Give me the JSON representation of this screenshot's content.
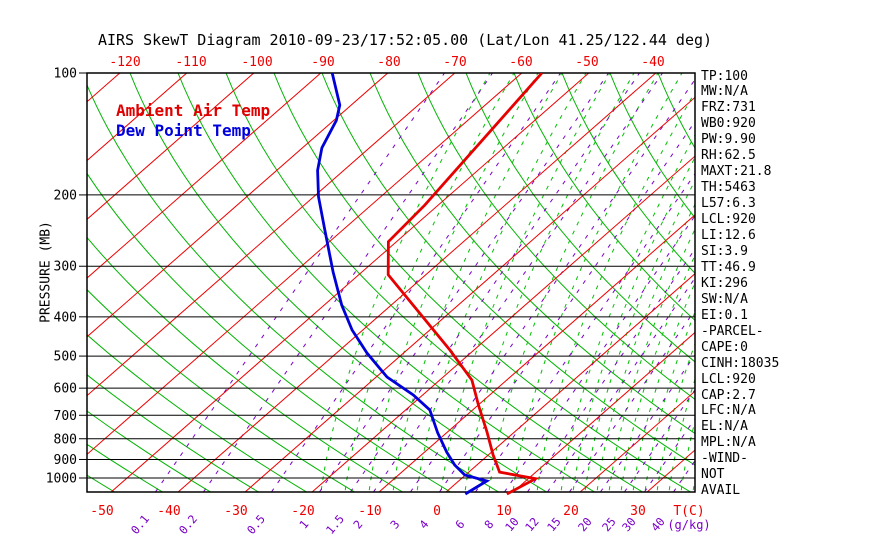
{
  "title": "AIRS SkewT Diagram 2010-09-23/17:52:05.00 (Lat/Lon 41.25/122.44 deg)",
  "legend": {
    "air_temp": "Ambient Air Temp",
    "dew_point": "Dew Point Temp"
  },
  "axes": {
    "pressure_label": "PRESSURE (MB)",
    "pressure_ticks": [
      100,
      200,
      300,
      400,
      500,
      600,
      700,
      800,
      900,
      1000
    ],
    "top_temp_labels": [
      -120,
      -110,
      -100,
      -90,
      -80,
      -70,
      -60,
      -50,
      -40
    ],
    "bottom_temp_labels": [
      -50,
      -40,
      -30,
      -20,
      -10,
      0,
      10,
      20,
      30
    ],
    "temp_unit": "T(C)",
    "mixing_unit": "(g/kg)",
    "mixing_labels": [
      "0.1",
      "0.2",
      "0.5",
      "1",
      "1.5",
      "2",
      "3",
      "4",
      "6",
      "8",
      "10",
      "12",
      "15",
      "20",
      "25",
      "30",
      "40"
    ]
  },
  "stats": [
    "TP:100",
    "MW:N/A",
    "FRZ:731",
    "WB0:920",
    "PW:9.90",
    "RH:62.5",
    "MAXT:21.8",
    "TH:5463",
    "L57:6.3",
    "LCL:920",
    "LI:12.6",
    "SI:3.9",
    "TT:46.9",
    "KI:296",
    "SW:N/A",
    "EI:0.1",
    "-PARCEL-",
    "CAPE:0",
    "CINH:18035",
    "LCL:920",
    "CAP:2.7",
    "LFC:N/A",
    "EL:N/A",
    "MPL:N/A",
    "-WIND-",
    "NOT",
    "AVAIL"
  ],
  "colors": {
    "isotherm_red": "#ee0000",
    "adiabat_green": "#00b400",
    "moist_green": "#00c000",
    "mixing_purple": "#7a00c8",
    "temp_curve": "#e60000",
    "dew_curve": "#0000d8",
    "axis_black": "#000000",
    "label_red": "#ee0000"
  },
  "chart_data": {
    "type": "line",
    "title": "AIRS SkewT Diagram 2010-09-23/17:52:05.00 (Lat/Lon 41.25/122.44 deg)",
    "x_axis": {
      "label": "T(C)",
      "bottom_label_range": [
        -50,
        30
      ],
      "top_label_range": [
        -120,
        -40
      ],
      "step": 10,
      "skewed": true
    },
    "y_axis": {
      "label": "PRESSURE (MB)",
      "range": [
        100,
        1080
      ],
      "scale": "log",
      "ticks": [
        100,
        200,
        300,
        400,
        500,
        600,
        700,
        800,
        900,
        1000
      ]
    },
    "mixing_ratio_lines_g_per_kg": [
      0.1,
      0.2,
      0.5,
      1,
      1.5,
      2,
      3,
      4,
      6,
      8,
      10,
      12,
      15,
      20,
      25,
      30,
      40
    ],
    "series": [
      {
        "name": "Ambient Air Temp",
        "points_p_mb_t_c": [
          [
            100,
            -57.0
          ],
          [
            212,
            -52.0
          ],
          [
            261,
            -51.2
          ],
          [
            315,
            -45.6
          ],
          [
            483,
            -23.6
          ],
          [
            573,
            -15.2
          ],
          [
            660,
            -10.0
          ],
          [
            770,
            -4.1
          ],
          [
            877,
            0.7
          ],
          [
            967,
            4.6
          ],
          [
            1004,
            11.1
          ],
          [
            1095,
            9.4
          ]
        ]
      },
      {
        "name": "Dew Point Temp",
        "points_p_mb_t_c": [
          [
            100,
            -88.3
          ],
          [
            120,
            -81.7
          ],
          [
            131,
            -79.6
          ],
          [
            153,
            -77.1
          ],
          [
            174,
            -73.9
          ],
          [
            202,
            -69.3
          ],
          [
            244,
            -62.7
          ],
          [
            310,
            -54.3
          ],
          [
            374,
            -47.4
          ],
          [
            431,
            -41.6
          ],
          [
            491,
            -35.5
          ],
          [
            563,
            -28.4
          ],
          [
            624,
            -21.4
          ],
          [
            679,
            -16.4
          ],
          [
            774,
            -11.3
          ],
          [
            863,
            -6.7
          ],
          [
            929,
            -3.3
          ],
          [
            983,
            -0.1
          ],
          [
            1017,
            4.2
          ],
          [
            1095,
            3.2
          ]
        ]
      }
    ]
  }
}
